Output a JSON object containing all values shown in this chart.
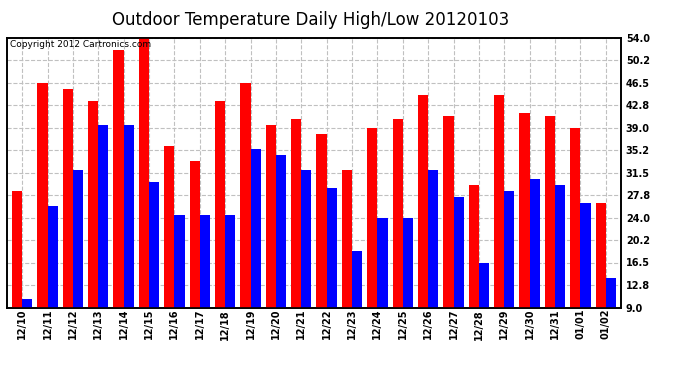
{
  "title": "Outdoor Temperature Daily High/Low 20120103",
  "copyright": "Copyright 2012 Cartronics.com",
  "dates": [
    "12/10",
    "12/11",
    "12/12",
    "12/13",
    "12/14",
    "12/15",
    "12/16",
    "12/17",
    "12/18",
    "12/19",
    "12/20",
    "12/21",
    "12/22",
    "12/23",
    "12/24",
    "12/25",
    "12/26",
    "12/27",
    "12/28",
    "12/29",
    "12/30",
    "12/31",
    "01/01",
    "01/02"
  ],
  "highs": [
    28.5,
    46.5,
    45.5,
    43.5,
    52.0,
    54.0,
    36.0,
    33.5,
    43.5,
    46.5,
    39.5,
    40.5,
    38.0,
    32.0,
    39.0,
    40.5,
    44.5,
    41.0,
    29.5,
    44.5,
    41.5,
    41.0,
    39.0,
    26.5
  ],
  "lows": [
    10.5,
    26.0,
    32.0,
    39.5,
    39.5,
    30.0,
    24.5,
    24.5,
    24.5,
    35.5,
    34.5,
    32.0,
    29.0,
    18.5,
    24.0,
    24.0,
    32.0,
    27.5,
    16.5,
    28.5,
    30.5,
    29.5,
    26.5,
    14.0
  ],
  "high_color": "#ff0000",
  "low_color": "#0000ff",
  "bg_color": "#ffffff",
  "grid_color": "#c0c0c0",
  "ylabel_right": [
    "9.0",
    "12.8",
    "16.5",
    "20.2",
    "24.0",
    "27.8",
    "31.5",
    "35.2",
    "39.0",
    "42.8",
    "46.5",
    "50.2",
    "54.0"
  ],
  "yticks": [
    9.0,
    12.8,
    16.5,
    20.2,
    24.0,
    27.8,
    31.5,
    35.2,
    39.0,
    42.8,
    46.5,
    50.2,
    54.0
  ],
  "ymin": 9.0,
  "ymax": 54.0,
  "title_fontsize": 12,
  "copyright_fontsize": 6.5,
  "tick_fontsize": 7,
  "bar_width": 0.4
}
